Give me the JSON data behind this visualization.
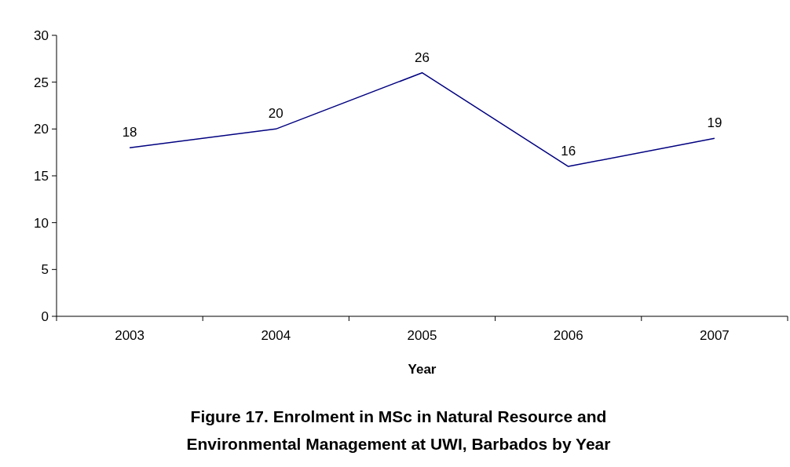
{
  "chart_data": {
    "type": "line",
    "title": "Figure 17. Enrolment in MSc in Natural Resource and Environmental Management at UWI, Barbados by Year",
    "xlabel": "Year",
    "categories": [
      "2003",
      "2004",
      "2005",
      "2006",
      "2007"
    ],
    "series": [
      {
        "color": "#000080",
        "values": [
          18,
          20,
          26,
          16,
          19
        ]
      }
    ],
    "ylim": [
      0,
      30
    ],
    "yticks": [
      0,
      5,
      10,
      15,
      20,
      25,
      30
    ],
    "grid": false,
    "data_labels": true,
    "marker": "none",
    "line_style": "solid"
  }
}
